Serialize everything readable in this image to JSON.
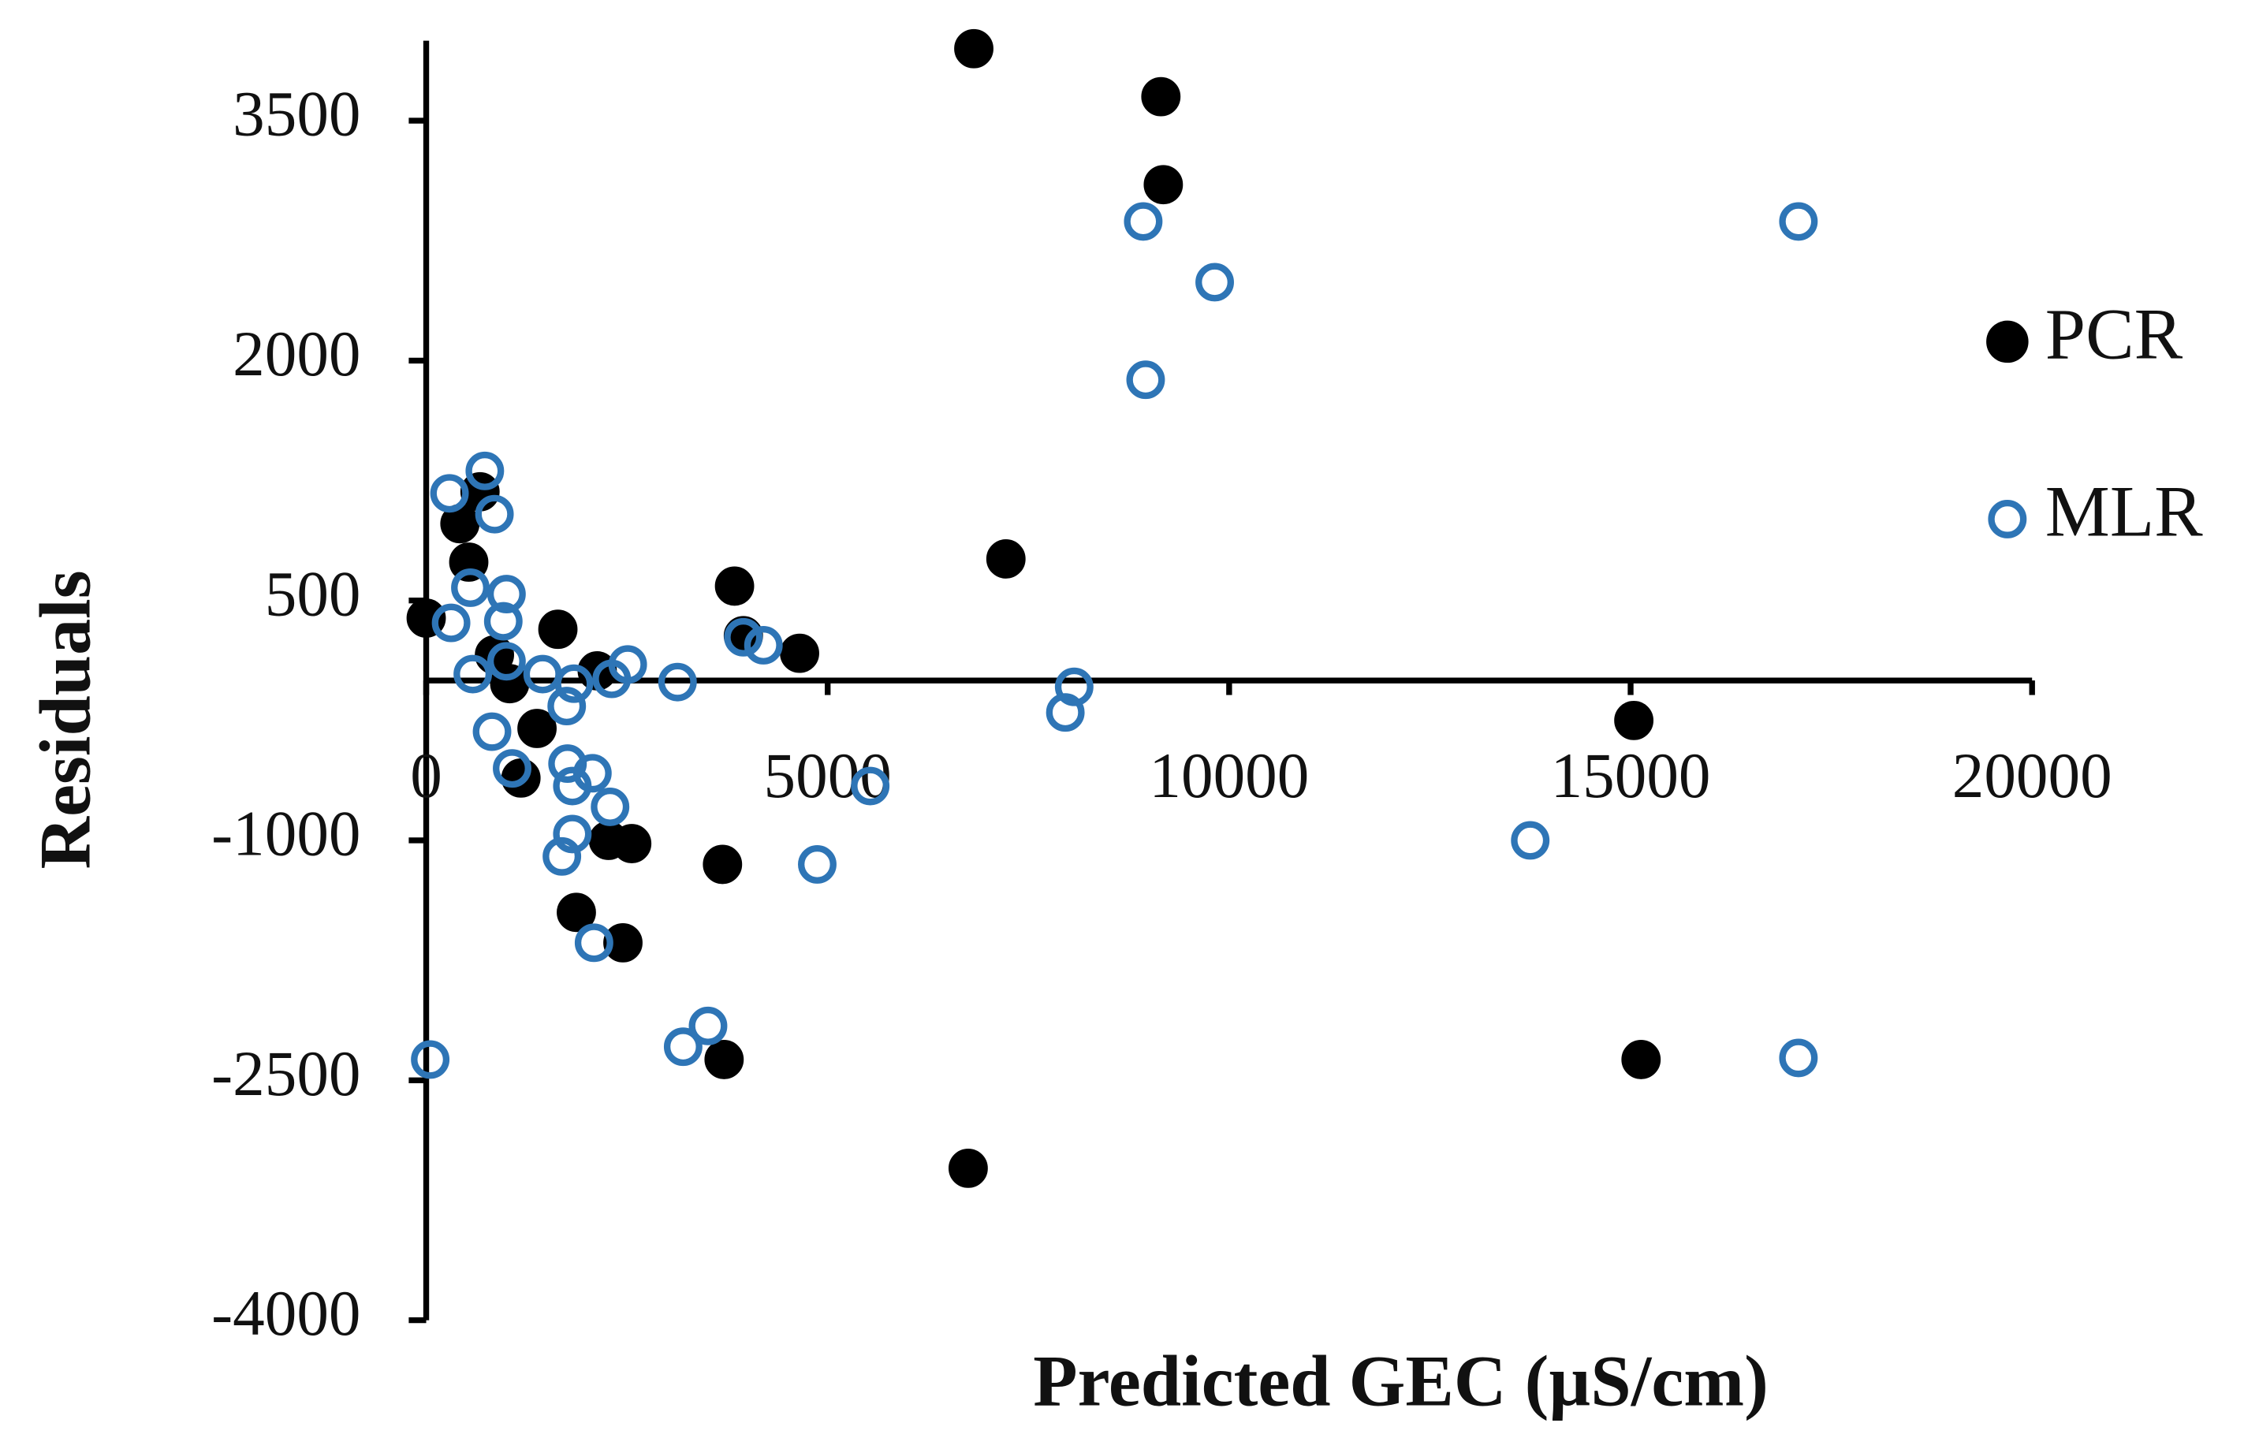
{
  "chart_data": {
    "type": "scatter",
    "x_label": "Predicted GEC (µS/cm)",
    "y_label": "Residuals",
    "xlim": [
      0,
      20000
    ],
    "ylim": [
      -4000,
      4000
    ],
    "xticks": [
      0,
      5000,
      10000,
      15000,
      20000
    ],
    "yticks": [
      -4000,
      -2500,
      -1000,
      500,
      2000,
      3500
    ],
    "legend": "right",
    "series": [
      {
        "name": "PCR",
        "color": "#000000",
        "marker": "filled",
        "x": [
          6820,
          9150,
          9180,
          7220,
          15040,
          15130,
          6750,
          3710,
          3690,
          3840,
          3950,
          4650,
          2450,
          1870,
          2560,
          2270,
          0,
          1640,
          530,
          670,
          420,
          1180,
          1380,
          2130,
          1040,
          850
        ],
        "values": [
          3950,
          3650,
          3100,
          760,
          -250,
          -2370,
          -3050,
          -2370,
          -1150,
          590,
          280,
          170,
          -1640,
          -1450,
          -1020,
          -1000,
          390,
          320,
          740,
          1180,
          980,
          -610,
          -300,
          60,
          -20,
          160
        ]
      },
      {
        "name": "MLR",
        "color": "#2e75b6",
        "marker": "hollow",
        "x": [
          50,
          290,
          730,
          850,
          550,
          1000,
          960,
          310,
          580,
          1000,
          820,
          1070,
          1450,
          1750,
          1840,
          2310,
          2510,
          3130,
          1760,
          1820,
          2070,
          2290,
          1820,
          1690,
          2090,
          3200,
          3510,
          3950,
          4200,
          4870,
          5530,
          8070,
          7960,
          8930,
          9820,
          8960,
          13750,
          17090,
          17090
        ],
        "values": [
          -2370,
          1170,
          1310,
          1040,
          580,
          540,
          370,
          360,
          40,
          120,
          -320,
          -550,
          40,
          -160,
          -20,
          10,
          100,
          -10,
          -520,
          -660,
          -580,
          -790,
          -960,
          -1100,
          -1640,
          -2290,
          -2160,
          270,
          220,
          -1150,
          -660,
          -40,
          -200,
          2870,
          2490,
          1880,
          -1000,
          2870,
          -2360
        ]
      }
    ]
  }
}
